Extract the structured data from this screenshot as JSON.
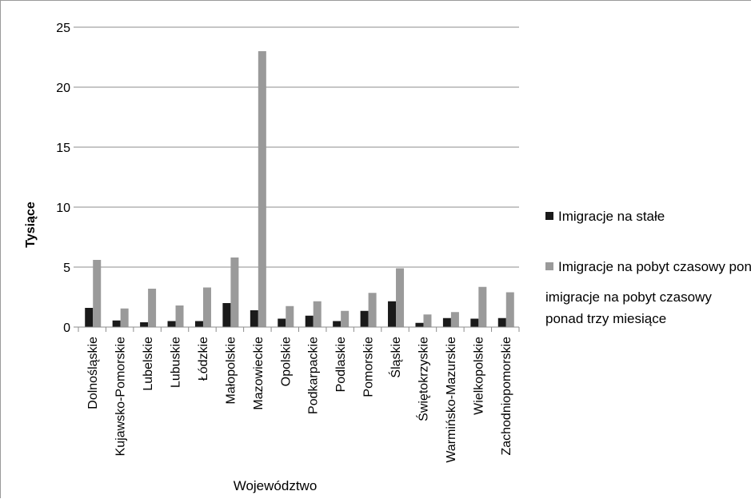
{
  "chart_data": {
    "type": "bar",
    "title": "",
    "xlabel": "Województwo",
    "ylabel": "Tysiące",
    "ylim": [
      0,
      25
    ],
    "yticks": [
      0,
      5,
      10,
      15,
      20,
      25
    ],
    "grid": true,
    "legend_position": "right",
    "categories": [
      "Dolnośląskie",
      "Kujawsko-Pomorskie",
      "Lubelskie",
      "Lubuskie",
      "Łódzkie",
      "Małopolskie",
      "Mazowieckie",
      "Opolskie",
      "Podkarpackie",
      "Podlaskie",
      "Pomorskie",
      "Śląskie",
      "Świętokrzyskie",
      "Warmińsko-Mazurskie",
      "Wielkopolskie",
      "Zachodniopomorskie"
    ],
    "series": [
      {
        "name": "Imigracje na stałe",
        "color": "#1a1a1a",
        "values": [
          1.6,
          0.55,
          0.4,
          0.5,
          0.5,
          2.0,
          1.4,
          0.7,
          0.95,
          0.5,
          1.35,
          2.15,
          0.35,
          0.75,
          0.7,
          0.75
        ]
      },
      {
        "name": "Imigracje na pobyt czasowy ponad 3 miesiące",
        "color": "#9a9a9a",
        "values": [
          5.6,
          1.55,
          3.2,
          1.8,
          3.3,
          5.8,
          23.0,
          1.75,
          2.15,
          1.35,
          2.85,
          4.9,
          1.05,
          1.25,
          3.35,
          2.9
        ]
      }
    ]
  },
  "overlay_note": "imigracje na pobyt czasowy ponad trzy miesiące"
}
